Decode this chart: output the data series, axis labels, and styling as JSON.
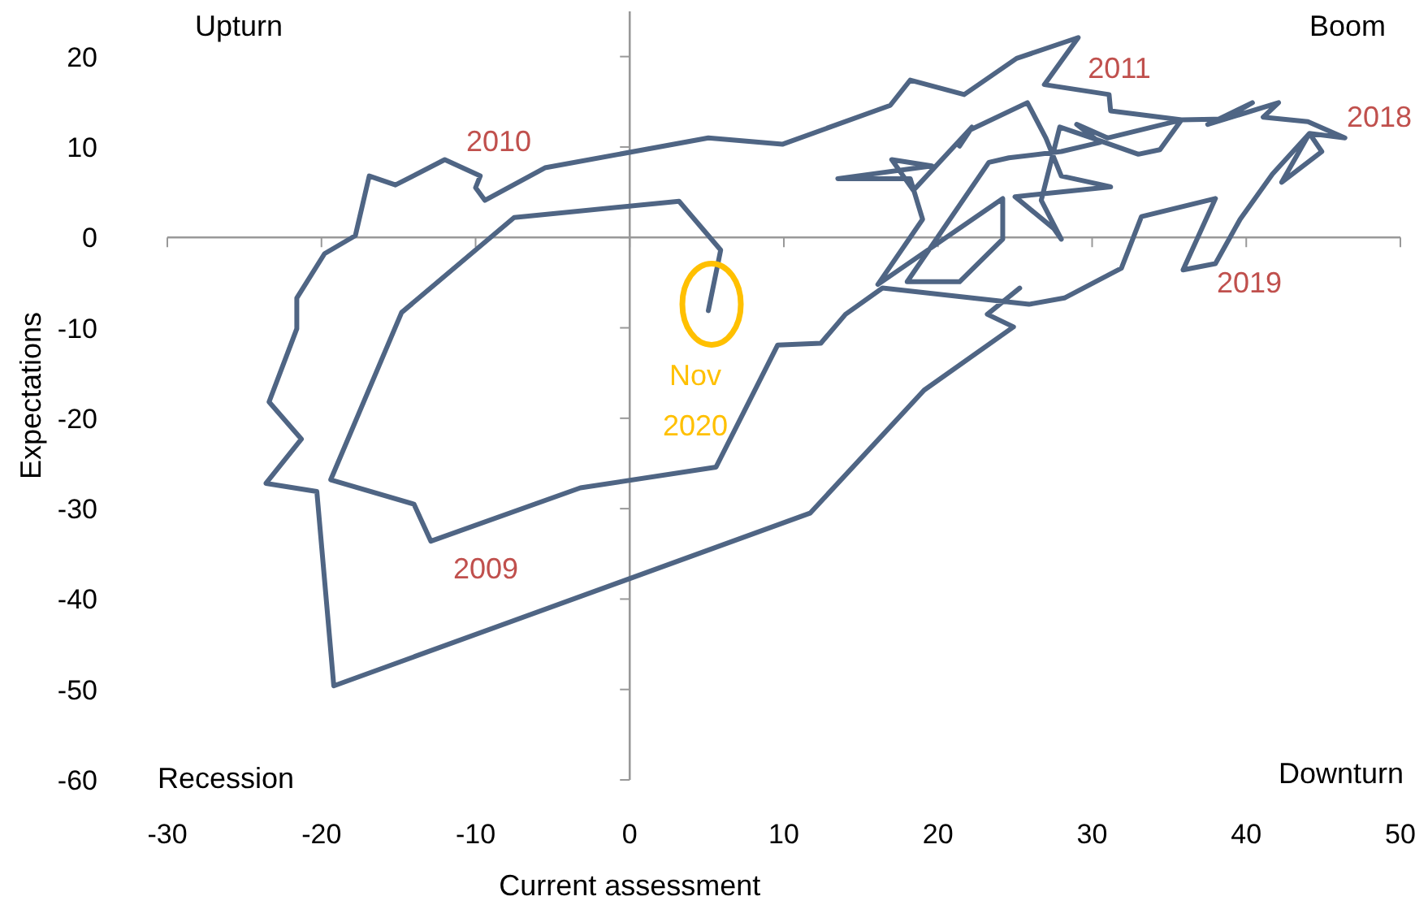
{
  "chart_data": {
    "type": "line",
    "xlabel": "Current assessment",
    "ylabel": "Expectations",
    "xlim": [
      -30,
      50
    ],
    "ylim": [
      -60,
      25
    ],
    "xticks": [
      -30,
      -20,
      -10,
      0,
      10,
      20,
      30,
      40,
      50
    ],
    "yticks": [
      -60,
      -50,
      -40,
      -30,
      -20,
      -10,
      0,
      10,
      20
    ],
    "marker": "none",
    "line_style": "solid",
    "series": [
      {
        "color": "#4f6584",
        "x": [
          25.3,
          23.2,
          24.9,
          19.1,
          11.7,
          -19.2,
          -20.3,
          -23.6,
          -21.3,
          -23.4,
          -21.6,
          -21.6,
          -19.8,
          -17.8,
          -16.9,
          -15.2,
          -12.0,
          -9.7,
          -10.0,
          -9.4,
          -5.5,
          5.1,
          9.9,
          16.9,
          18.2,
          21.7,
          25.1,
          29.1,
          26.9,
          31.1,
          31.2,
          35.8,
          34.4,
          33.0,
          30.0,
          27.9,
          26.7,
          28.0,
          27.5,
          25.0,
          31.2,
          28.0,
          27.0,
          25.8,
          22.1,
          21.4,
          22.2,
          18.4,
          17.0,
          19.6,
          13.5,
          18.2,
          19.0,
          16.1,
          24.2,
          24.2,
          21.4,
          18.0,
          23.3,
          24.6,
          28.0,
          30.5,
          29.0,
          31.0,
          35.8,
          38.6,
          40.4,
          37.5,
          42.1,
          41.1,
          44.0,
          46.4,
          44.1,
          44.9,
          42.3,
          44.1,
          41.7,
          39.6,
          38.0,
          35.9,
          38.0,
          33.2,
          31.9,
          28.2,
          25.9,
          16.4,
          14.0,
          12.4,
          9.6,
          5.6,
          -3.2,
          -12.9,
          -14.0,
          -19.4,
          -14.8,
          -7.5,
          3.2,
          5.9,
          5.1
        ],
        "values": [
          -5.6,
          -8.5,
          -9.9,
          -16.9,
          -30.5,
          -49.6,
          -28.1,
          -27.2,
          -22.3,
          -18.2,
          -10.1,
          -6.7,
          -1.8,
          0.2,
          6.8,
          5.8,
          8.6,
          6.8,
          5.5,
          4.1,
          7.7,
          11.0,
          10.3,
          14.6,
          17.4,
          15.8,
          19.8,
          22.1,
          16.9,
          15.8,
          14.0,
          13.0,
          9.7,
          9.2,
          11.0,
          12.2,
          4.1,
          -0.2,
          1.0,
          4.5,
          5.6,
          6.8,
          11.0,
          14.9,
          11.9,
          10.1,
          12.2,
          5.2,
          8.6,
          7.9,
          6.5,
          6.5,
          2.0,
          -5.2,
          4.3,
          -0.2,
          -4.9,
          -4.9,
          8.3,
          8.8,
          9.5,
          10.5,
          12.5,
          11.0,
          13.0,
          13.1,
          14.9,
          12.5,
          14.9,
          13.3,
          12.8,
          11.0,
          11.5,
          9.5,
          6.1,
          11.5,
          7.0,
          2.0,
          -2.9,
          -3.6,
          4.3,
          2.3,
          -3.4,
          -6.7,
          -7.4,
          -5.6,
          -8.5,
          -11.7,
          -11.9,
          -25.4,
          -27.7,
          -33.6,
          -29.5,
          -26.8,
          -8.3,
          2.2,
          4.0,
          -1.4,
          -8.1
        ]
      }
    ],
    "annotations": [
      "Upturn",
      "Boom",
      "Recession",
      "Downturn",
      "2010",
      "2011",
      "2018",
      "2019",
      "2009",
      "Nov 2020"
    ]
  }
}
